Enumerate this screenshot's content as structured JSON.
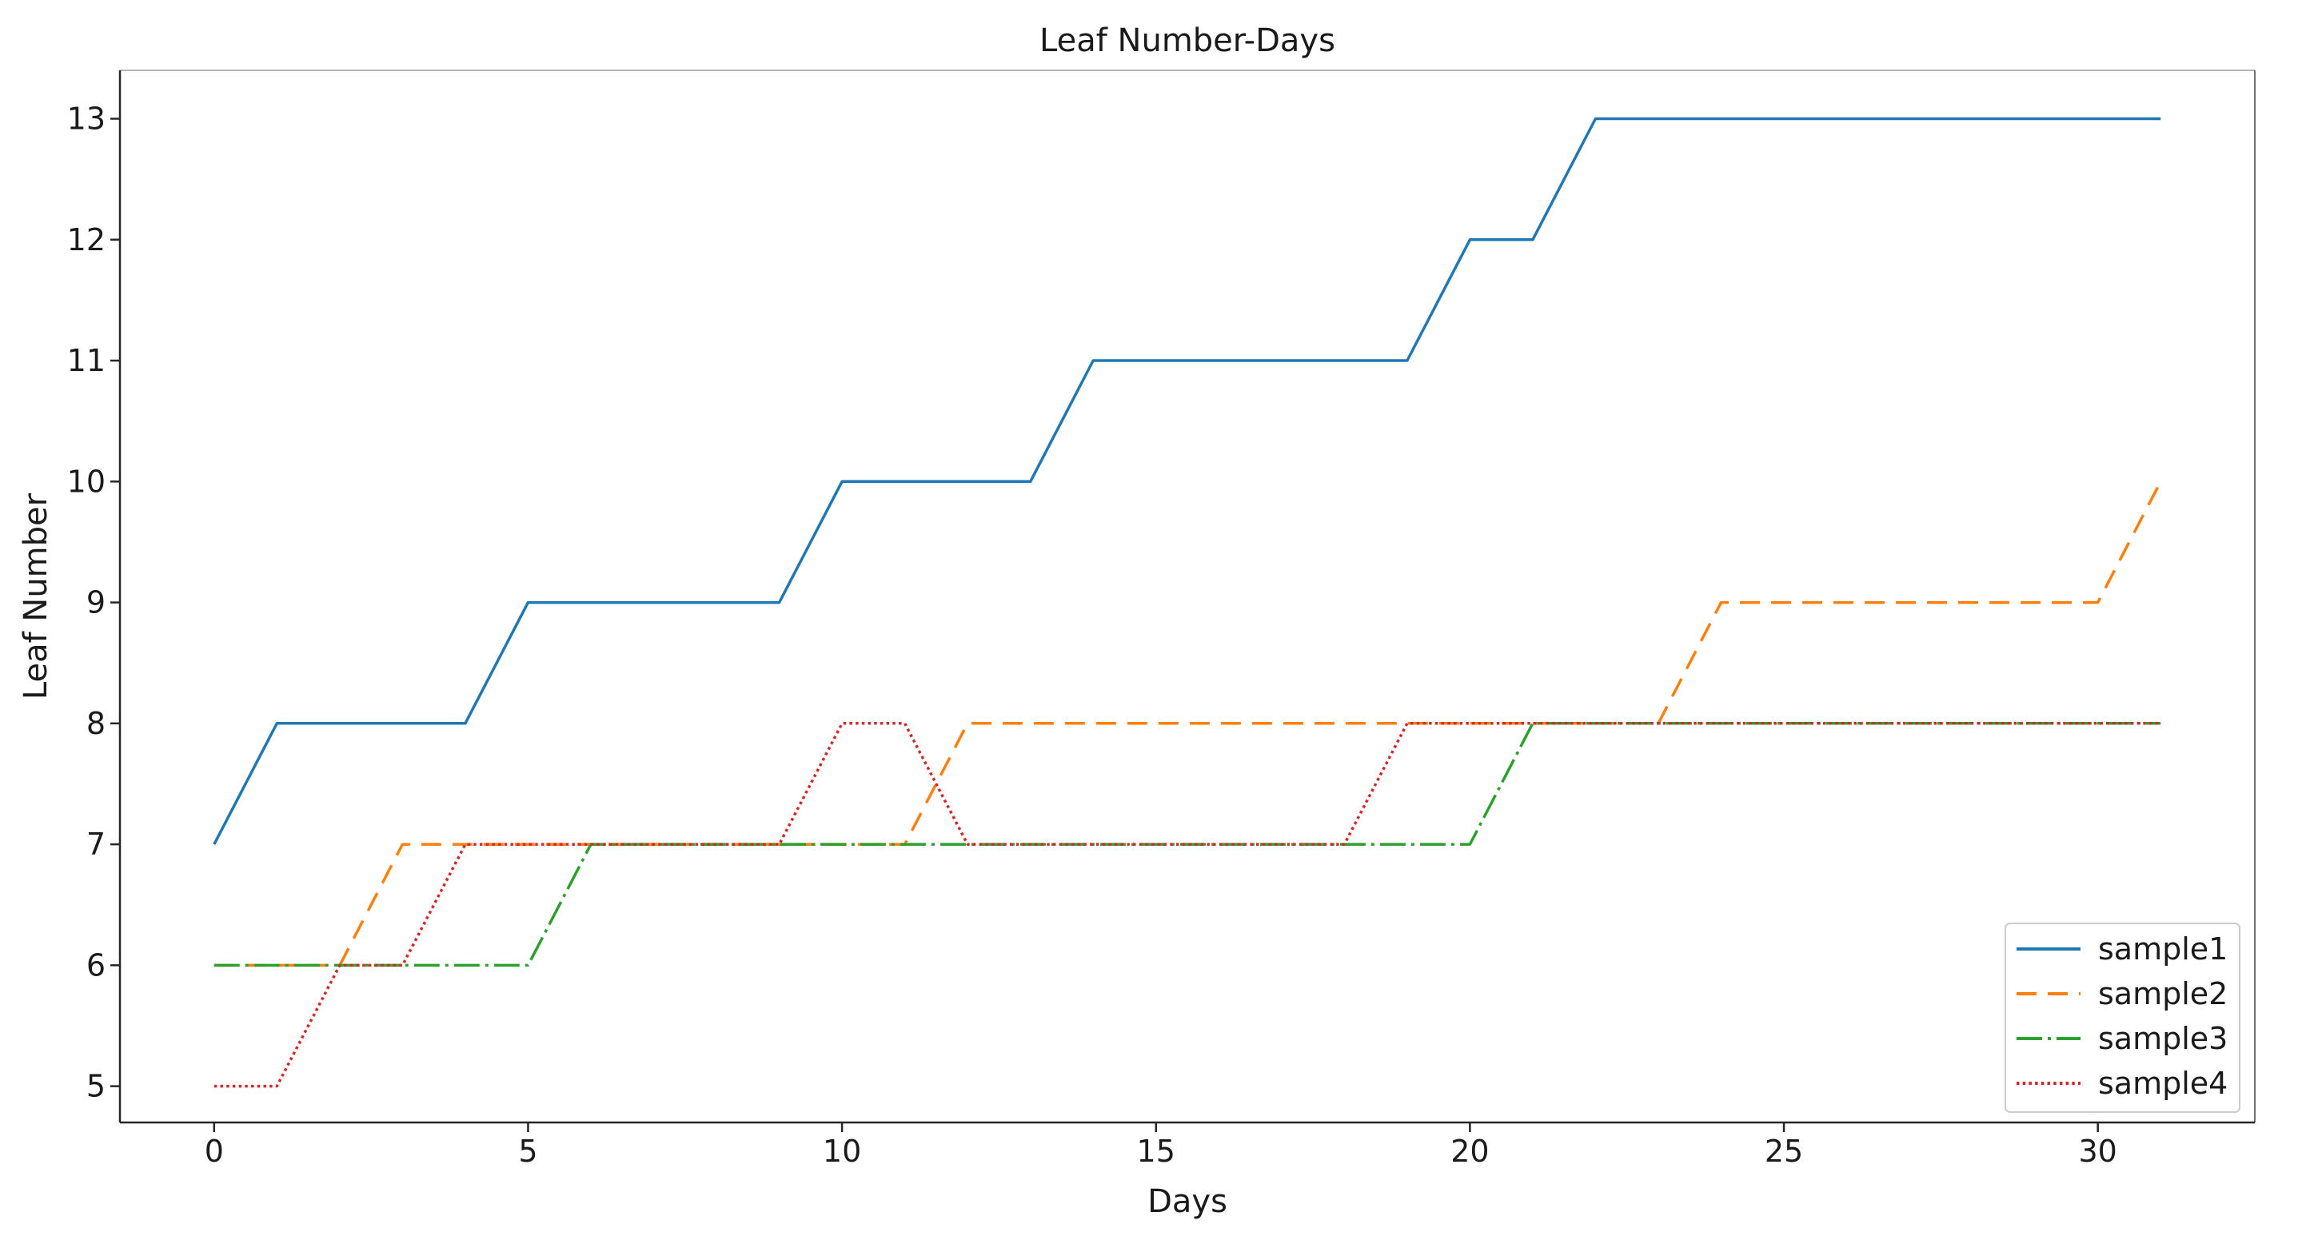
{
  "page": {
    "title": "Leaf Number-Days"
  },
  "chart_data": {
    "type": "line",
    "title": "Leaf Number-Days",
    "xlabel": "Days",
    "ylabel": "Leaf Number",
    "x": [
      0,
      1,
      2,
      3,
      4,
      5,
      6,
      7,
      8,
      9,
      10,
      11,
      12,
      13,
      14,
      15,
      16,
      17,
      18,
      19,
      20,
      21,
      22,
      23,
      24,
      25,
      26,
      27,
      28,
      29,
      30,
      31
    ],
    "series": [
      {
        "name": "sample1",
        "color": "#1f77b4",
        "linestyle": "solid",
        "values": [
          7,
          8,
          8,
          8,
          8,
          9,
          9,
          9,
          9,
          9,
          10,
          10,
          10,
          10,
          11,
          11,
          11,
          11,
          11,
          11,
          12,
          12,
          13,
          13,
          13,
          13,
          13,
          13,
          13,
          13,
          13,
          13
        ]
      },
      {
        "name": "sample2",
        "color": "#ff7f0e",
        "linestyle": "dashed",
        "values": [
          6,
          6,
          6,
          7,
          7,
          7,
          7,
          7,
          7,
          7,
          7,
          7,
          8,
          8,
          8,
          8,
          8,
          8,
          8,
          8,
          8,
          8,
          8,
          8,
          9,
          9,
          9,
          9,
          9,
          9,
          9,
          10
        ]
      },
      {
        "name": "sample3",
        "color": "#2ca02c",
        "linestyle": "dashdot",
        "values": [
          6,
          6,
          6,
          6,
          6,
          6,
          7,
          7,
          7,
          7,
          7,
          7,
          7,
          7,
          7,
          7,
          7,
          7,
          7,
          7,
          7,
          8,
          8,
          8,
          8,
          8,
          8,
          8,
          8,
          8,
          8,
          8
        ]
      },
      {
        "name": "sample4",
        "color": "#d62728",
        "linestyle": "dotted",
        "values": [
          5,
          5,
          6,
          6,
          7,
          7,
          7,
          7,
          7,
          7,
          8,
          8,
          7,
          7,
          7,
          7,
          7,
          7,
          7,
          8,
          8,
          8,
          8,
          8,
          8,
          8,
          8,
          8,
          8,
          8,
          8,
          8
        ]
      }
    ],
    "xticks": [
      0,
      5,
      10,
      15,
      20,
      25,
      30
    ],
    "yticks": [
      5,
      6,
      7,
      8,
      9,
      10,
      11,
      12,
      13
    ],
    "xlim": [
      -1.5,
      32.5
    ],
    "ylim": [
      4.7,
      13.4
    ],
    "grid": false,
    "legend": {
      "position": "lower right",
      "entries": [
        "sample1",
        "sample2",
        "sample3",
        "sample4"
      ]
    }
  }
}
